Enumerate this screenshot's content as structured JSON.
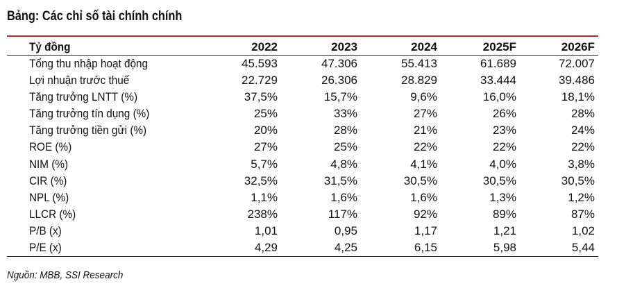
{
  "title": "Bảng: Các chỉ số tài chính chính",
  "header": {
    "unit": "Tỷ đồng",
    "years": [
      "2022",
      "2023",
      "2024",
      "2025F",
      "2026F"
    ]
  },
  "rows": [
    {
      "label": "Tổng thu nhập hoạt động",
      "values": [
        "45.593",
        "47.306",
        "55.413",
        "61.689",
        "72.007"
      ]
    },
    {
      "label": "Lợi nhuận trước thuế",
      "values": [
        "22.729",
        "26.306",
        "28.829",
        "33.444",
        "39.486"
      ]
    },
    {
      "label": "Tăng trưởng LNTT (%)",
      "values": [
        "37,5%",
        "15,7%",
        "9,6%",
        "16,0%",
        "18,1%"
      ]
    },
    {
      "label": "Tăng trưởng tín dụng (%)",
      "values": [
        "25%",
        "33%",
        "27%",
        "26%",
        "28%"
      ]
    },
    {
      "label": "Tăng trưởng tiền gửi (%)",
      "values": [
        "20%",
        "28%",
        "21%",
        "23%",
        "24%"
      ]
    },
    {
      "label": "ROE (%)",
      "values": [
        "27%",
        "25%",
        "22%",
        "22%",
        "22%"
      ]
    },
    {
      "label": "NIM (%)",
      "values": [
        "5,7%",
        "4,8%",
        "4,1%",
        "4,0%",
        "3,8%"
      ]
    },
    {
      "label": "CIR (%)",
      "values": [
        "32,5%",
        "31,5%",
        "30,5%",
        "30,5%",
        "30,5%"
      ]
    },
    {
      "label": "NPL (%)",
      "values": [
        "1,1%",
        "1,6%",
        "1,6%",
        "1,3%",
        "1,2%"
      ]
    },
    {
      "label": "LLCR (%)",
      "values": [
        "238%",
        "117%",
        "92%",
        "89%",
        "87%"
      ]
    },
    {
      "label": "P/B (x)",
      "values": [
        "1,01",
        "0,95",
        "1,17",
        "1,21",
        "1,02"
      ]
    },
    {
      "label": "P/E (x)",
      "values": [
        "4,29",
        "4,25",
        "6,15",
        "5,98",
        "5,44"
      ]
    }
  ],
  "source": "Nguồn: MBB, SSI Research",
  "colors": {
    "accent_rule": "#c0272d",
    "text": "#111111"
  }
}
